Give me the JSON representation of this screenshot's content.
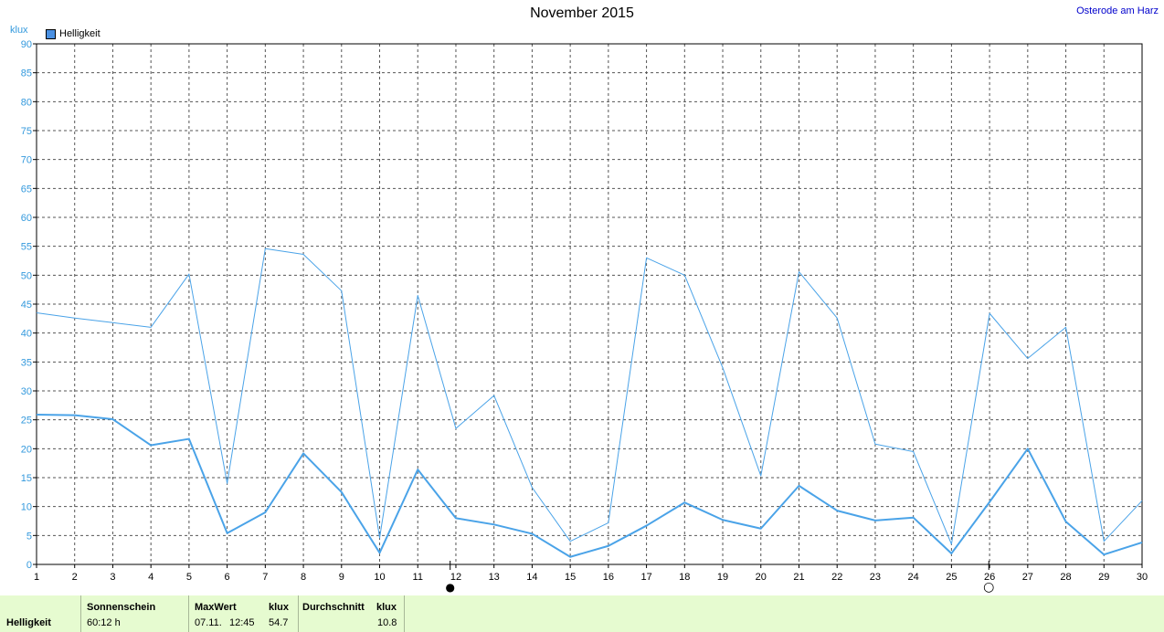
{
  "chart_data": {
    "type": "line",
    "title": "November 2015",
    "location": "Osterode am Harz",
    "y_unit": "klux",
    "ylim": [
      0,
      90
    ],
    "y_ticks": [
      0,
      5,
      10,
      15,
      20,
      25,
      30,
      35,
      40,
      45,
      50,
      55,
      60,
      65,
      70,
      75,
      80,
      85,
      90
    ],
    "x": [
      1,
      2,
      3,
      4,
      5,
      6,
      7,
      8,
      9,
      10,
      11,
      12,
      13,
      14,
      15,
      16,
      17,
      18,
      19,
      20,
      21,
      22,
      23,
      24,
      25,
      26,
      27,
      28,
      29,
      30
    ],
    "grid": true,
    "legend_position": "top-left",
    "legend": [
      "Helligkeit"
    ],
    "series": [
      {
        "role": "max",
        "color": "#4aa3e8",
        "values": [
          43.5,
          42.6,
          41.8,
          41.0,
          50.2,
          14.0,
          54.6,
          53.6,
          47.3,
          4.6,
          46.5,
          23.5,
          29.2,
          13.3,
          4.0,
          7.2,
          53.0,
          50.0,
          34.0,
          15.3,
          50.6,
          42.6,
          20.8,
          19.5,
          3.5,
          43.4,
          35.6,
          41.0,
          4.0,
          11.0
        ]
      },
      {
        "role": "average",
        "color": "#4aa3e8",
        "values": [
          25.9,
          25.8,
          25.1,
          20.6,
          21.7,
          5.4,
          9.0,
          19.2,
          12.5,
          2.0,
          16.4,
          8.0,
          6.9,
          5.3,
          1.3,
          3.2,
          6.7,
          10.7,
          7.7,
          6.2,
          13.6,
          9.3,
          7.6,
          8.1,
          1.9,
          10.8,
          20.0,
          7.4,
          1.7,
          3.8
        ]
      }
    ],
    "moon_markers": [
      {
        "x": 11.85,
        "phase": "new",
        "glyph": "●"
      },
      {
        "x": 25.98,
        "phase": "full",
        "glyph": "○"
      }
    ]
  },
  "footer": {
    "row_label": "Helligkeit",
    "sunshine_label": "Sonnenschein",
    "sunshine_value": "60:12 h",
    "max_label": "MaxWert",
    "max_unit": "klux",
    "max_date": "07.11.",
    "max_time": "12:45",
    "max_value": "54.7",
    "avg_label": "Durchschnitt",
    "avg_unit": "klux",
    "avg_value": "10.8"
  }
}
